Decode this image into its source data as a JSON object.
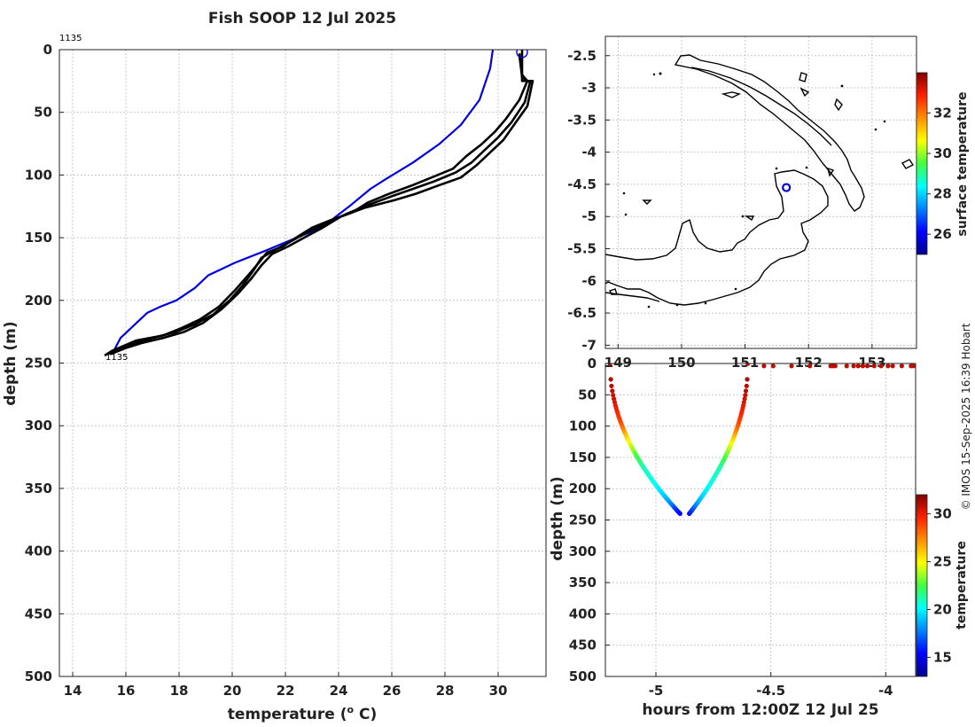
{
  "title": "Fish SOOP 12 Jul 2025",
  "credit": "© IMOS 15-Sep-2025 16:39 Hobart",
  "chart_data": [
    {
      "id": "profile",
      "type": "line",
      "xlabel_main": "temperature (",
      "xlabel_sup": "o",
      "xlabel_end": " C)",
      "ylabel": "depth (m)",
      "xlim": [
        13.5,
        31.8
      ],
      "ylim": [
        500,
        0
      ],
      "xticks": [
        14,
        16,
        18,
        20,
        22,
        24,
        26,
        28,
        30
      ],
      "yticks": [
        0,
        50,
        100,
        150,
        200,
        250,
        300,
        350,
        400,
        450,
        500
      ],
      "label_top": "1135",
      "label_bottom": "1135",
      "series": [
        {
          "name": "climatology",
          "color": "#0000dd",
          "points": [
            [
              29.8,
              0
            ],
            [
              29.7,
              15
            ],
            [
              29.3,
              40
            ],
            [
              28.6,
              60
            ],
            [
              27.8,
              75
            ],
            [
              26.8,
              90
            ],
            [
              25.8,
              103
            ],
            [
              25.2,
              111
            ],
            [
              24.4,
              125
            ],
            [
              23.6,
              138
            ],
            [
              23.0,
              145
            ],
            [
              22.2,
              152
            ],
            [
              21.3,
              160
            ],
            [
              20.1,
              170
            ],
            [
              19.1,
              180
            ],
            [
              18.6,
              190
            ],
            [
              17.9,
              200
            ],
            [
              17.3,
              205
            ],
            [
              16.8,
              210
            ],
            [
              16.3,
              220
            ],
            [
              15.8,
              230
            ],
            [
              15.5,
              242
            ]
          ]
        },
        {
          "name": "envelope",
          "color": "#000000",
          "points": [
            [
              30.8,
              5
            ],
            [
              30.9,
              20
            ],
            [
              31.1,
              25
            ],
            [
              30.8,
              40
            ],
            [
              30.3,
              55
            ],
            [
              29.9,
              65
            ],
            [
              29.4,
              75
            ],
            [
              28.8,
              85
            ],
            [
              28.3,
              95
            ],
            [
              27.5,
              102
            ],
            [
              26.8,
              108
            ],
            [
              25.9,
              115
            ],
            [
              25.1,
              122
            ],
            [
              24.5,
              130
            ],
            [
              23.7,
              136
            ],
            [
              23.0,
              142
            ],
            [
              22.4,
              150
            ],
            [
              21.9,
              157
            ],
            [
              21.3,
              162
            ],
            [
              21.0,
              170
            ],
            [
              20.6,
              180
            ],
            [
              20.1,
              192
            ],
            [
              19.5,
              205
            ],
            [
              18.8,
              215
            ],
            [
              18.1,
              222
            ],
            [
              17.4,
              228
            ],
            [
              16.4,
              232
            ],
            [
              15.5,
              240
            ],
            [
              15.2,
              244
            ]
          ]
        },
        {
          "name": "envelope",
          "color": "#000000",
          "points": [
            [
              30.9,
              0
            ],
            [
              30.9,
              25
            ],
            [
              31.3,
              25
            ],
            [
              31.1,
              45
            ],
            [
              30.6,
              60
            ],
            [
              30.2,
              72
            ],
            [
              29.7,
              82
            ],
            [
              29.2,
              92
            ],
            [
              28.6,
              102
            ],
            [
              27.8,
              108
            ],
            [
              26.9,
              115
            ],
            [
              26.1,
              120
            ],
            [
              25.0,
              126
            ],
            [
              24.1,
              133
            ],
            [
              23.4,
              142
            ],
            [
              22.7,
              150
            ],
            [
              22.1,
              157
            ],
            [
              21.5,
              163
            ],
            [
              21.1,
              172
            ],
            [
              20.7,
              183
            ],
            [
              20.2,
              195
            ],
            [
              19.6,
              207
            ],
            [
              18.9,
              218
            ],
            [
              18.2,
              225
            ],
            [
              17.4,
              230
            ],
            [
              16.6,
              234
            ],
            [
              16.0,
              238
            ],
            [
              15.4,
              243
            ]
          ]
        },
        {
          "name": "observed",
          "color": "#000000",
          "points": [
            [
              30.8,
              3
            ],
            [
              30.9,
              22
            ],
            [
              31.2,
              26
            ],
            [
              31.0,
              42
            ],
            [
              30.5,
              58
            ],
            [
              30.0,
              70
            ],
            [
              29.5,
              80
            ],
            [
              29.0,
              90
            ],
            [
              28.4,
              98
            ],
            [
              27.6,
              105
            ],
            [
              26.8,
              111
            ],
            [
              26.0,
              117
            ],
            [
              25.1,
              124
            ],
            [
              24.3,
              131
            ],
            [
              23.5,
              139
            ],
            [
              22.8,
              146
            ],
            [
              22.2,
              153
            ],
            [
              21.6,
              160
            ],
            [
              21.1,
              166
            ],
            [
              20.8,
              176
            ],
            [
              20.4,
              188
            ],
            [
              19.9,
              200
            ],
            [
              19.3,
              211
            ],
            [
              18.6,
              219
            ],
            [
              17.9,
              225
            ],
            [
              17.2,
              229
            ],
            [
              16.5,
              233
            ],
            [
              15.8,
              238
            ],
            [
              15.3,
              243
            ]
          ]
        }
      ],
      "marker": {
        "temp": 30.9,
        "depth": 2,
        "color": "#0000dd"
      }
    },
    {
      "id": "map",
      "type": "map",
      "xlim": [
        148.8,
        153.7
      ],
      "ylim": [
        -7.05,
        -2.2
      ],
      "xticks": [
        149,
        150,
        151,
        152,
        153
      ],
      "xtick_labels": [
        "149",
        "150",
        "151",
        "152",
        "153"
      ],
      "yticks": [
        -2.5,
        -3,
        -3.5,
        -4,
        -4.5,
        -5,
        -5.5,
        -6,
        -6.5,
        -7
      ],
      "ytick_labels": [
        "-2.5",
        "-3",
        "-3.5",
        "-4",
        "-4.5",
        "-5",
        "-5.5",
        "-6",
        "-6.5",
        "-7"
      ],
      "location": {
        "lon": 151.65,
        "lat": -4.55,
        "color": "#0000dd"
      },
      "colorbar": {
        "label": "surface temperature",
        "range": [
          25,
          34
        ],
        "ticks": [
          26,
          28,
          30,
          32
        ],
        "tick_labels": [
          "26",
          "28",
          "30",
          "32"
        ]
      }
    },
    {
      "id": "section",
      "type": "scatter",
      "xlabel": "hours from 12:00Z 12 Jul 25",
      "ylabel": "depth (m)",
      "xlim": [
        -5.22,
        -3.87
      ],
      "ylim": [
        500,
        0
      ],
      "xticks": [
        -5,
        -4.5,
        -4
      ],
      "xtick_labels": [
        "-5",
        "-4.5",
        "-4"
      ],
      "yticks": [
        0,
        50,
        100,
        150,
        200,
        250,
        300,
        350,
        400,
        450,
        500
      ],
      "colorbar": {
        "label": "temperature",
        "range": [
          13,
          32
        ],
        "ticks": [
          15,
          20,
          25,
          30
        ],
        "tick_labels": [
          "15",
          "20",
          "25",
          "30"
        ]
      },
      "descent": {
        "t0": -5.2,
        "t1": -4.895,
        "max_depth": 240
      },
      "ascent": {
        "t0": -4.855,
        "t1": -4.6,
        "max_depth": 240
      },
      "surface_points_t": [
        -4.53,
        -4.49,
        -4.41,
        -4.33,
        -4.24,
        -4.23,
        -4.22,
        -4.17,
        -4.14,
        -4.12,
        -4.1,
        -4.08,
        -4.05,
        -4.02,
        -3.99,
        -3.97,
        -3.93,
        -3.89,
        -3.88
      ]
    }
  ]
}
